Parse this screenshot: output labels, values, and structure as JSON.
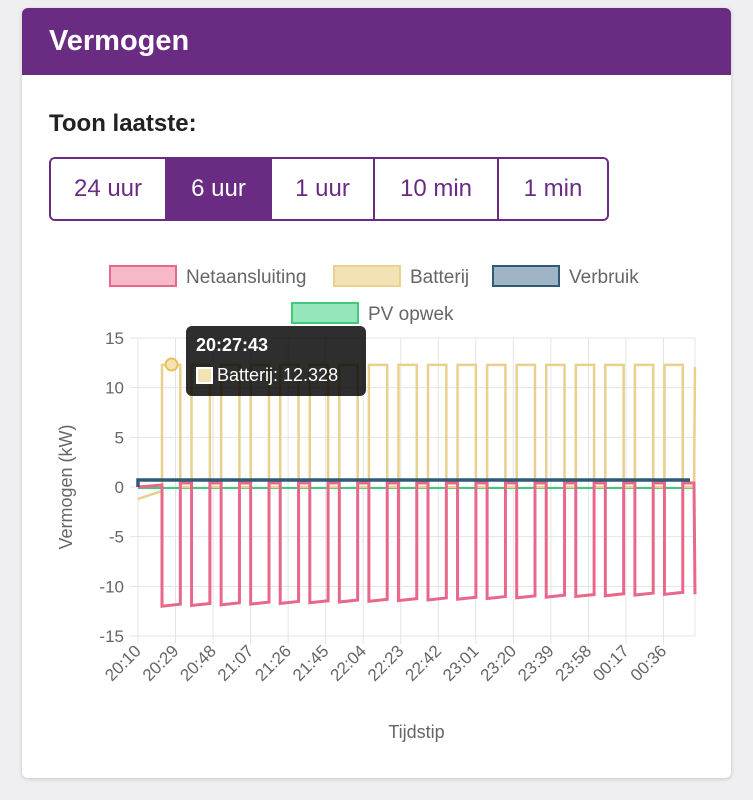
{
  "card": {
    "title": "Vermogen"
  },
  "range": {
    "label": "Toon laatste:",
    "options": [
      "24 uur",
      "6 uur",
      "1 uur",
      "10 min",
      "1 min"
    ],
    "selected": "6 uur"
  },
  "chart_data": {
    "type": "line",
    "xlabel": "Tijdstip",
    "ylabel": "Vermogen (kW)",
    "ylim": [
      -15,
      15
    ],
    "yticks": [
      15,
      10,
      5,
      0,
      -5,
      -10,
      -15
    ],
    "xticks": [
      "20:10",
      "20:29",
      "20:48",
      "21:07",
      "21:26",
      "21:45",
      "22:04",
      "22:23",
      "22:42",
      "23:01",
      "23:20",
      "23:39",
      "23:58",
      "00:17",
      "00:36"
    ],
    "grid": true,
    "legend_position": "top",
    "series": [
      {
        "name": "Netaansluiting",
        "color": "#e8678a",
        "fill": "#f7b8c9",
        "low": -12.0,
        "high": 0.4
      },
      {
        "name": "Batterij",
        "color": "#e9d08c",
        "fill": "#f3e2b3",
        "low": 0.0,
        "high": 12.3
      },
      {
        "name": "Verbruik",
        "color": "#2f5a75",
        "fill": "#9fb4c7",
        "level": 0.6
      },
      {
        "name": "PV opwek",
        "color": "#3ec97c",
        "fill": "#95e6ba",
        "level": 0.0
      }
    ],
    "tooltip": {
      "title": "20:27:43",
      "series": "Batterij",
      "label": "Batterij: 12.328",
      "time": "20:27",
      "value": 12.328
    }
  }
}
